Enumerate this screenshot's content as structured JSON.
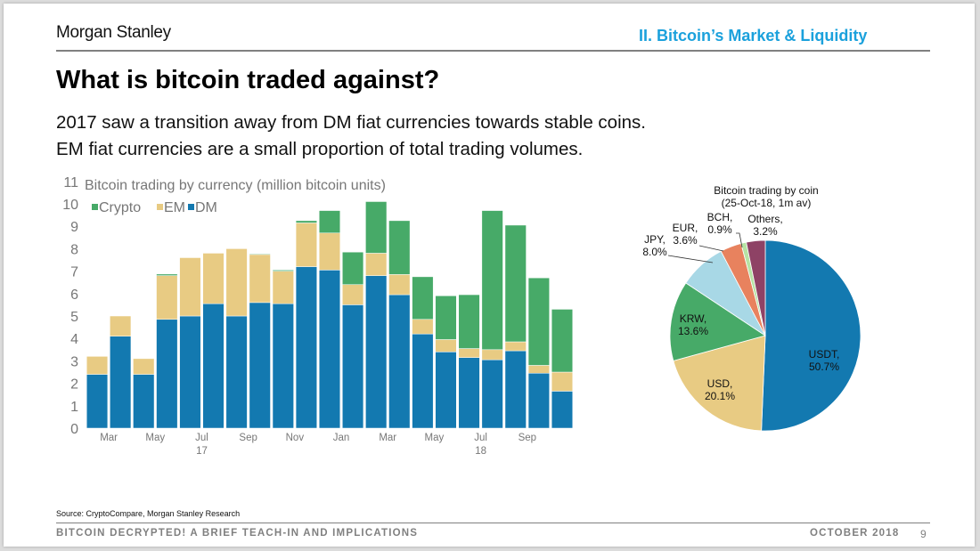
{
  "header": {
    "brand": "Morgan Stanley",
    "section": "II. Bitcoin’s Market & Liquidity"
  },
  "title": "What is bitcoin traded against?",
  "subtitle_lines": [
    "2017 saw a transition away from DM fiat currencies towards stable coins.",
    "EM fiat currencies are a small proportion of total trading volumes."
  ],
  "footer": {
    "source": "Source: CryptoCompare, Morgan Stanley Research",
    "deck_title": "BITCOIN DECRYPTED! A BRIEF TEACH-IN AND IMPLICATIONS",
    "date": "OCTOBER 2018",
    "page": "9"
  },
  "colors": {
    "DM": "#1379b0",
    "EM": "#e8cb83",
    "Crypto": "#47aa68",
    "section": "#1ba1dc"
  },
  "chart_data": [
    {
      "type": "bar",
      "stacked": true,
      "title": "Bitcoin trading by currency (million bitcoin units)",
      "xlabel": "",
      "ylabel": "",
      "ylim": [
        0,
        11
      ],
      "yticks": [
        0,
        1,
        2,
        3,
        4,
        5,
        6,
        7,
        8,
        9,
        10,
        11
      ],
      "legend": [
        "Crypto",
        "EM",
        "DM"
      ],
      "legend_position": "top-left",
      "categories": [
        "Feb-17",
        "Mar-17",
        "Apr-17",
        "May-17",
        "Jun-17",
        "Jul-17",
        "Aug-17",
        "Sep-17",
        "Oct-17",
        "Nov-17",
        "Dec-17",
        "Jan-18",
        "Feb-18",
        "Mar-18",
        "Apr-18",
        "May-18",
        "Jun-18",
        "Jul-18",
        "Aug-18",
        "Sep-18",
        "Oct-18"
      ],
      "xtick_labels": [
        {
          "label": "Mar",
          "after_index": 0
        },
        {
          "label": "May",
          "after_index": 2
        },
        {
          "label": "Jul",
          "after_index": 4
        },
        {
          "label": "Sep",
          "after_index": 6
        },
        {
          "label": "Nov",
          "after_index": 8
        },
        {
          "label": "Jan",
          "after_index": 10
        },
        {
          "label": "Mar",
          "after_index": 12
        },
        {
          "label": "May",
          "after_index": 14
        },
        {
          "label": "Jul",
          "after_index": 16
        },
        {
          "label": "Sep",
          "after_index": 18
        }
      ],
      "year_labels": [
        {
          "label": "17",
          "after_index": 4
        },
        {
          "label": "18",
          "after_index": 16
        }
      ],
      "series": [
        {
          "name": "DM",
          "values": [
            2.4,
            4.1,
            2.4,
            4.85,
            5.0,
            5.55,
            5.0,
            5.6,
            5.55,
            7.2,
            7.05,
            5.5,
            6.8,
            5.95,
            4.2,
            3.4,
            3.15,
            3.05,
            3.45,
            2.45,
            1.65
          ]
        },
        {
          "name": "EM",
          "values": [
            0.8,
            0.9,
            0.7,
            1.95,
            2.6,
            2.25,
            3.0,
            2.15,
            1.45,
            1.95,
            1.65,
            0.9,
            1.0,
            0.9,
            0.65,
            0.55,
            0.4,
            0.45,
            0.4,
            0.35,
            0.85
          ]
        },
        {
          "name": "Crypto",
          "values": [
            0.0,
            0.0,
            0.0,
            0.07,
            0.0,
            0.0,
            0.0,
            0.02,
            0.05,
            0.1,
            1.0,
            1.45,
            2.3,
            2.4,
            1.9,
            1.95,
            2.4,
            6.2,
            5.2,
            3.9,
            2.8
          ]
        }
      ]
    },
    {
      "type": "pie",
      "title": "Bitcoin trading by coin",
      "subtitle": "(25-Oct-18,  1m av)",
      "start": "12 o'clock",
      "direction": "clockwise",
      "slices": [
        {
          "label": "USDT",
          "value": 50.7,
          "display": "50.7%",
          "color": "#1379b0"
        },
        {
          "label": "USD",
          "value": 20.1,
          "display": "20.1%",
          "color": "#e8cb83"
        },
        {
          "label": "KRW",
          "value": 13.6,
          "display": "13.6%",
          "color": "#47aa68"
        },
        {
          "label": "JPY",
          "value": 8.0,
          "display": "8.0%",
          "color": "#a8d8e6"
        },
        {
          "label": "EUR",
          "value": 3.6,
          "display": "3.6%",
          "color": "#e8825e"
        },
        {
          "label": "BCH",
          "value": 0.9,
          "display": "0.9%",
          "color": "#b6e3a4"
        },
        {
          "label": "Others",
          "value": 3.2,
          "display": "3.2%",
          "color": "#8e4265"
        }
      ]
    }
  ]
}
